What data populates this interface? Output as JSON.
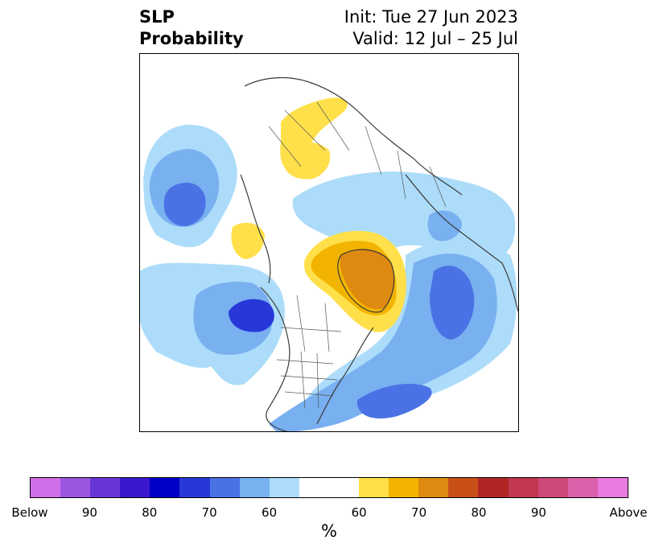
{
  "title": {
    "left_line1": "SLP",
    "left_line2": "Probability",
    "right_line1": "Init: Tue 27 Jun 2023",
    "right_line2": "Valid: 12 Jul – 25 Jul"
  },
  "colorbar": {
    "units": "%",
    "colors": [
      "#d070e8",
      "#9b55e0",
      "#6a35d8",
      "#3a18d0",
      "#0000c8",
      "#2838d8",
      "#4a72e4",
      "#78b0f0",
      "#acdcfa",
      "#ffffff",
      "#ffe04a",
      "#f2b400",
      "#de8a10",
      "#c85018",
      "#b02424",
      "#c23850",
      "#cc4a7a",
      "#dc60aa",
      "#e87ae0"
    ],
    "widths": [
      1,
      1,
      1,
      1,
      1,
      1,
      1,
      1,
      1,
      2,
      1,
      1,
      1,
      1,
      1,
      1,
      1,
      1,
      1
    ],
    "tick_labels": [
      "Below",
      "90",
      "80",
      "70",
      "60",
      "60",
      "70",
      "80",
      "90",
      "Above"
    ]
  },
  "map": {
    "regions": [
      {
        "name": "north-pacific-below-outer",
        "category": "below-40-60"
      },
      {
        "name": "north-pacific-below-mid",
        "category": "below-60-70"
      },
      {
        "name": "north-pacific-below-core",
        "category": "below-70-80"
      },
      {
        "name": "northeast-pacific-below-outer",
        "category": "below-40-60"
      },
      {
        "name": "northeast-pacific-below-mid",
        "category": "below-60-70"
      },
      {
        "name": "northeast-pacific-below-core",
        "category": "below-80-90"
      },
      {
        "name": "atlantic-below-outer",
        "category": "below-40-60"
      },
      {
        "name": "atlantic-below-mid",
        "category": "below-60-70"
      },
      {
        "name": "atlantic-below-core",
        "category": "below-70-80"
      },
      {
        "name": "siberia-above-patch",
        "category": "above-40-60"
      },
      {
        "name": "east-asia-above-patch",
        "category": "above-40-60"
      },
      {
        "name": "chukchi-above-patch",
        "category": "above-40-60"
      },
      {
        "name": "greenland-above-outer",
        "category": "above-40-60"
      },
      {
        "name": "greenland-above-mid",
        "category": "above-60-70"
      },
      {
        "name": "greenland-above-core",
        "category": "above-70-80"
      },
      {
        "name": "russia-below-outer",
        "category": "below-40-60"
      },
      {
        "name": "europe-below-patch",
        "category": "below-60-70"
      }
    ]
  }
}
